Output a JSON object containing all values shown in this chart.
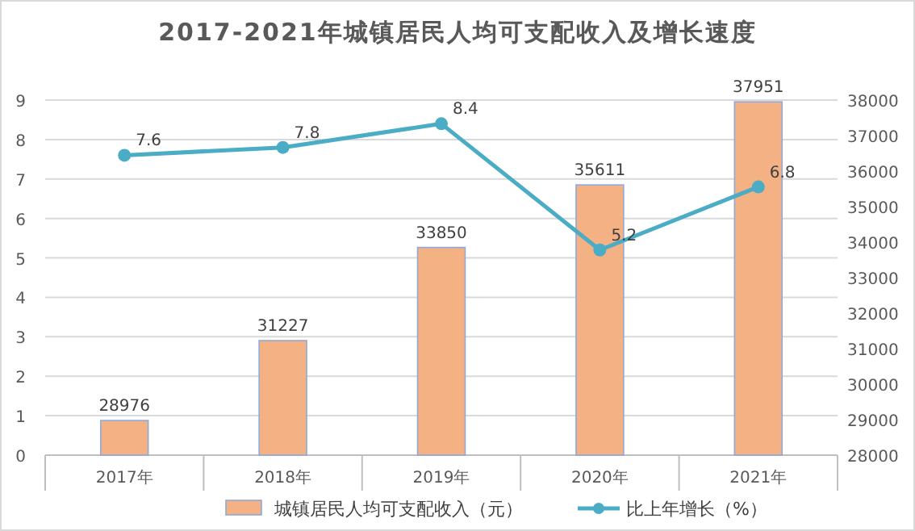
{
  "chart_data": {
    "type": "bar",
    "title": "2017-2021年城镇居民人均可支配收入及增长速度",
    "categories": [
      "2017年",
      "2018年",
      "2019年",
      "2020年",
      "2021年"
    ],
    "series": [
      {
        "name": "城镇居民人均可支配收入（元）",
        "axis": "y2",
        "color": "#f4b183",
        "values": [
          28976,
          31227,
          33850,
          35611,
          37951
        ]
      },
      {
        "name": "比上年增长（%）",
        "type": "line",
        "axis": "y",
        "color": "#4bacc6",
        "values": [
          7.6,
          7.8,
          8.4,
          5.2,
          6.8
        ]
      }
    ],
    "ylim": [
      0,
      9
    ],
    "yticks": [
      0,
      1,
      2,
      3,
      4,
      5,
      6,
      7,
      8,
      9
    ],
    "y2lim": [
      28000,
      38000
    ],
    "y2ticks": [
      28000,
      29000,
      30000,
      31000,
      32000,
      33000,
      34000,
      35000,
      36000,
      37000,
      38000
    ],
    "grid": "y",
    "legend": "bottom",
    "data_labels": true,
    "marker": "circle"
  }
}
